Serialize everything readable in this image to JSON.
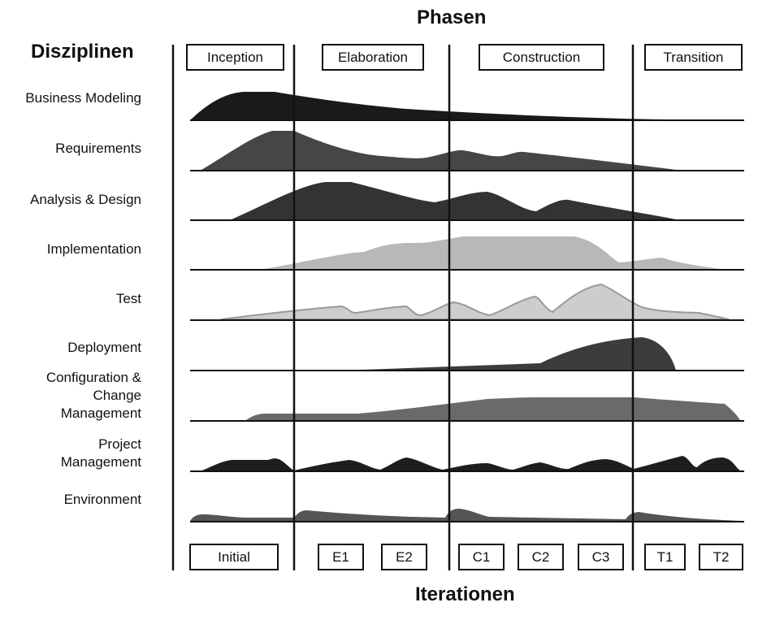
{
  "header": {
    "phases_title": "Phasen",
    "disciplines_title": "Disziplinen",
    "iterations_title": "Iterationen"
  },
  "phases": [
    "Inception",
    "Elaboration",
    "Construction",
    "Transition"
  ],
  "iterations": [
    "Initial",
    "E1",
    "E2",
    "C1",
    "C2",
    "C3",
    "T1",
    "T2"
  ],
  "disciplines": [
    {
      "lines": [
        "Business Modeling"
      ],
      "color": "#1a1a1a"
    },
    {
      "lines": [
        "Requirements"
      ],
      "color": "#464646"
    },
    {
      "lines": [
        "Analysis & Design"
      ],
      "color": "#333333"
    },
    {
      "lines": [
        "Implementation"
      ],
      "color": "#b8b8b8"
    },
    {
      "lines": [
        "Test"
      ],
      "color": "#cdcdcd"
    },
    {
      "lines": [
        "Deployment"
      ],
      "color": "#3c3c3c"
    },
    {
      "lines": [
        "Configuration &",
        "Change",
        "Management"
      ],
      "color": "#6a6a6a"
    },
    {
      "lines": [
        "Project",
        "Management"
      ],
      "color": "#1e1e1e"
    },
    {
      "lines": [
        "Environment"
      ],
      "color": "#555555"
    }
  ]
}
